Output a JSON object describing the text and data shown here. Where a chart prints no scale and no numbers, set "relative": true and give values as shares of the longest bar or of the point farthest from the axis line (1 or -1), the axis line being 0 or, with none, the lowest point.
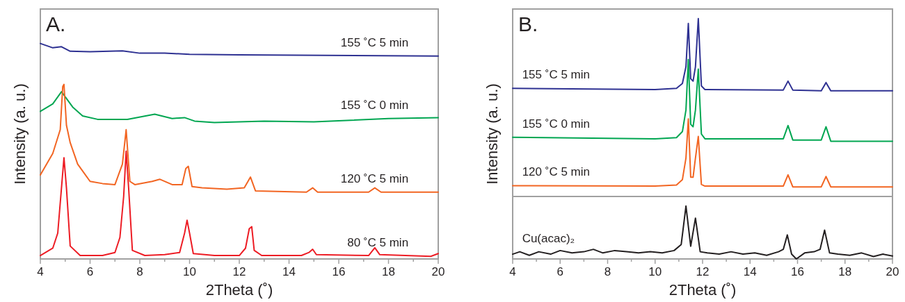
{
  "chart_data": [
    {
      "type": "line",
      "title": "A.",
      "xlabel": "2Theta (˚)",
      "ylabel": "Intensity (a. u.)",
      "relative": true,
      "xlim": [
        4,
        20
      ],
      "xticks": [
        4,
        {
          "value": 5,
          "label": null
        },
        6,
        {
          "value": 7,
          "label": null
        },
        8,
        {
          "value": 9,
          "label": null
        },
        10,
        {
          "value": 11,
          "label": null
        },
        12,
        {
          "value": 13,
          "label": null
        },
        14,
        {
          "value": 15,
          "label": null
        },
        16,
        {
          "value": 17,
          "label": null
        },
        18,
        {
          "value": 19,
          "label": null
        },
        20
      ],
      "series": [
        {
          "name": "155 ˚C 5 min",
          "color": "#2e3192",
          "x": [
            4,
            4.5,
            4.85,
            5.2,
            6,
            7.3,
            8,
            9,
            10,
            12,
            20
          ],
          "values": [
            1.0,
            0.98,
            0.985,
            0.964,
            0.962,
            0.966,
            0.955,
            0.955,
            0.95,
            0.947,
            0.942
          ]
        },
        {
          "name": "155 ˚C 0 min",
          "color": "#00a651",
          "x": [
            4,
            4.5,
            4.85,
            5.3,
            5.7,
            6.3,
            7.5,
            8.6,
            9.3,
            9.8,
            10.2,
            11,
            13,
            15,
            18,
            20
          ],
          "values": [
            0.685,
            0.72,
            0.776,
            0.705,
            0.664,
            0.648,
            0.648,
            0.672,
            0.652,
            0.656,
            0.64,
            0.633,
            0.64,
            0.636,
            0.652,
            0.656
          ]
        },
        {
          "name": "120 ˚C 5 min",
          "color": "#f26522",
          "x": [
            4,
            4.5,
            4.8,
            4.9,
            4.95,
            5.05,
            5.2,
            5.5,
            6.0,
            6.5,
            7.0,
            7.3,
            7.45,
            7.6,
            7.8,
            8.5,
            8.8,
            9.3,
            9.7,
            9.85,
            9.95,
            10.1,
            10.5,
            11.5,
            12.2,
            12.45,
            12.65,
            14.7,
            14.95,
            15.15,
            17.2,
            17.45,
            17.7,
            20
          ],
          "values": [
            0.39,
            0.49,
            0.6,
            0.8,
            0.81,
            0.62,
            0.54,
            0.44,
            0.36,
            0.35,
            0.345,
            0.44,
            0.6,
            0.36,
            0.345,
            0.36,
            0.37,
            0.345,
            0.345,
            0.42,
            0.43,
            0.336,
            0.33,
            0.324,
            0.33,
            0.38,
            0.316,
            0.31,
            0.33,
            0.31,
            0.31,
            0.33,
            0.31,
            0.31
          ]
        },
        {
          "name": "80 ˚C 5 min",
          "color": "#ed1c24",
          "x": [
            4,
            4.5,
            4.7,
            4.85,
            4.95,
            5.05,
            5.2,
            5.6,
            6.5,
            7.0,
            7.2,
            7.35,
            7.45,
            7.55,
            7.7,
            8.2,
            9,
            9.6,
            9.8,
            9.9,
            10.0,
            10.15,
            11,
            12.0,
            12.25,
            12.4,
            12.5,
            12.6,
            12.9,
            14.5,
            14.8,
            14.95,
            15.1,
            17.2,
            17.45,
            17.65,
            19.7,
            20
          ],
          "values": [
            0.016,
            0.05,
            0.12,
            0.33,
            0.47,
            0.33,
            0.06,
            0.016,
            0.016,
            0.03,
            0.1,
            0.29,
            0.5,
            0.33,
            0.04,
            0.016,
            0.02,
            0.03,
            0.12,
            0.18,
            0.12,
            0.025,
            0.016,
            0.016,
            0.05,
            0.14,
            0.15,
            0.04,
            0.016,
            0.016,
            0.03,
            0.045,
            0.02,
            0.016,
            0.052,
            0.02,
            0.012,
            0.025
          ]
        }
      ]
    },
    {
      "type": "line",
      "title": "B.",
      "xlabel": "2Theta (˚)",
      "ylabel": "Intensity (a. u.)",
      "relative": true,
      "xlim": [
        4,
        20
      ],
      "xticks": [
        4,
        {
          "value": 5,
          "label": null
        },
        6,
        {
          "value": 7,
          "label": null
        },
        8,
        {
          "value": 9,
          "label": null
        },
        10,
        {
          "value": 11,
          "label": null
        },
        12,
        {
          "value": 13,
          "label": null
        },
        14,
        {
          "value": 15,
          "label": null
        },
        16,
        {
          "value": 17,
          "label": null
        },
        18,
        {
          "value": 19,
          "label": null
        },
        20
      ],
      "ref_lines": [
        {
          "axis": "y",
          "value": 0.26,
          "color": "#a0a0a0"
        }
      ],
      "series": [
        {
          "name": "155 ˚C 5 min",
          "color": "#2e3192",
          "x": [
            4,
            10,
            10.9,
            11.15,
            11.3,
            11.4,
            11.5,
            11.6,
            11.7,
            11.82,
            11.95,
            12.1,
            15.4,
            15.6,
            15.8,
            17.0,
            17.2,
            17.4,
            20
          ],
          "values": [
            0.71,
            0.705,
            0.71,
            0.73,
            0.8,
            0.98,
            0.75,
            0.74,
            0.8,
            1.0,
            0.72,
            0.705,
            0.703,
            0.74,
            0.703,
            0.7,
            0.734,
            0.7,
            0.7
          ]
        },
        {
          "name": "155 ˚C 0 min",
          "color": "#00a651",
          "x": [
            4,
            10,
            10.9,
            11.15,
            11.3,
            11.4,
            11.5,
            11.6,
            11.7,
            11.82,
            11.95,
            12.1,
            15.4,
            15.6,
            15.8,
            17.0,
            17.2,
            17.4,
            20
          ],
          "values": [
            0.506,
            0.5,
            0.505,
            0.53,
            0.62,
            0.83,
            0.56,
            0.55,
            0.62,
            0.79,
            0.52,
            0.5,
            0.5,
            0.555,
            0.495,
            0.495,
            0.55,
            0.49,
            0.49
          ]
        },
        {
          "name": "120 ˚C 5 min",
          "color": "#f26522",
          "x": [
            4,
            10,
            10.9,
            11.15,
            11.3,
            11.4,
            11.5,
            11.6,
            11.7,
            11.82,
            11.95,
            12.1,
            15.4,
            15.6,
            15.8,
            17.0,
            17.2,
            17.4,
            20
          ],
          "values": [
            0.305,
            0.303,
            0.308,
            0.33,
            0.42,
            0.583,
            0.34,
            0.34,
            0.42,
            0.51,
            0.31,
            0.303,
            0.303,
            0.35,
            0.3,
            0.3,
            0.343,
            0.3,
            0.3
          ]
        },
        {
          "name": "Cu(acac)₂",
          "color": "#231f20",
          "x": [
            4,
            4.3,
            4.7,
            5.1,
            5.6,
            6.0,
            6.5,
            7.0,
            7.4,
            7.8,
            8.3,
            8.8,
            9.3,
            9.8,
            10.3,
            10.8,
            11.1,
            11.3,
            11.5,
            11.7,
            11.9,
            12.2,
            12.7,
            13.2,
            13.7,
            14.2,
            14.7,
            15.2,
            15.4,
            15.57,
            15.75,
            15.95,
            16.3,
            16.7,
            16.95,
            17.14,
            17.35,
            17.7,
            18.2,
            18.7,
            19.2,
            19.6,
            20
          ],
          "values": [
            0.02,
            0.03,
            0.015,
            0.03,
            0.02,
            0.035,
            0.025,
            0.03,
            0.04,
            0.025,
            0.035,
            0.03,
            0.025,
            0.03,
            0.025,
            0.035,
            0.06,
            0.22,
            0.053,
            0.17,
            0.03,
            0.025,
            0.02,
            0.03,
            0.02,
            0.025,
            0.015,
            0.03,
            0.04,
            0.1,
            0.02,
            0.0,
            0.025,
            0.03,
            0.04,
            0.12,
            0.025,
            0.02,
            0.015,
            0.025,
            0.01,
            0.02,
            0.012
          ]
        }
      ]
    }
  ]
}
